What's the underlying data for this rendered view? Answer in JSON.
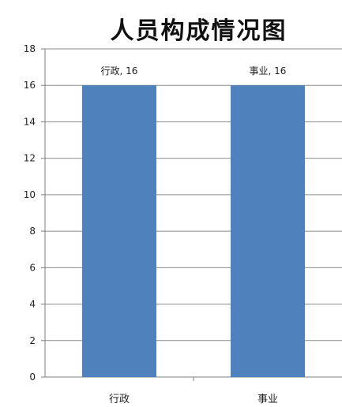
{
  "chart_data": {
    "type": "bar",
    "title": "人员构成情况图",
    "categories": [
      "行政",
      "事业"
    ],
    "values": [
      16,
      16
    ],
    "data_labels": [
      "行政, 16",
      "事业, 16"
    ],
    "ylim": [
      0,
      18
    ],
    "yticks": [
      0,
      2,
      4,
      6,
      8,
      10,
      12,
      14,
      16,
      18
    ],
    "xlabel": "",
    "ylabel": "",
    "grid": true,
    "bar_color": "#4F81BD",
    "legend": "none"
  }
}
